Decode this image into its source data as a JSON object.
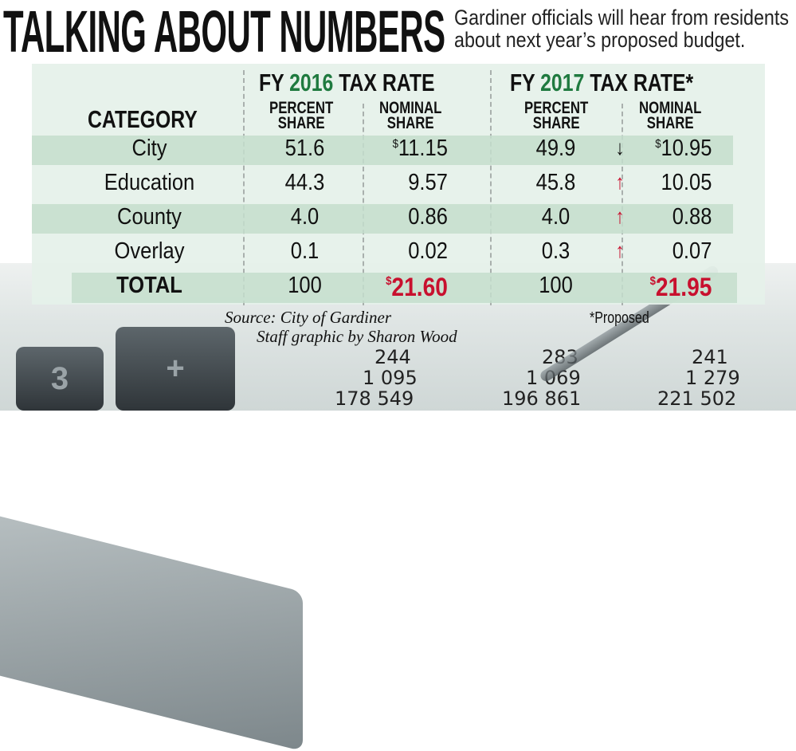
{
  "headline": "TALKING ABOUT NUMBERS",
  "subtitle_line1": "Gardiner officials will hear from residents",
  "subtitle_line2": "about next year’s proposed budget.",
  "fy2016": {
    "prefix": "FY ",
    "year": "2016",
    "suffix": " TAX RATE"
  },
  "fy2017": {
    "prefix": "FY ",
    "year": "2017",
    "suffix": " TAX RATE*"
  },
  "columns": {
    "category": "CATEGORY",
    "percent_1": "PERCENT",
    "percent_2": "SHARE",
    "nominal_1": "NOMINAL",
    "nominal_2": "SHARE"
  },
  "rows": [
    {
      "category": "City",
      "p2016": "51.6",
      "n2016": "11.15",
      "n2016_dollar": "$",
      "p2017": "49.9",
      "trend": "down",
      "trend_glyph": "↓",
      "n2017": "10.95",
      "n2017_dollar": "$"
    },
    {
      "category": "Education",
      "p2016": "44.3",
      "n2016": "9.57",
      "p2017": "45.8",
      "trend": "up",
      "trend_glyph": "↑",
      "n2017": "10.05"
    },
    {
      "category": "County",
      "p2016": "4.0",
      "n2016": "0.86",
      "p2017": "4.0",
      "trend": "up",
      "trend_glyph": "↑",
      "n2017": "0.88"
    },
    {
      "category": "Overlay",
      "p2016": "0.1",
      "n2016": "0.02",
      "p2017": "0.3",
      "trend": "up",
      "trend_glyph": "↑",
      "n2017": "0.07"
    }
  ],
  "total": {
    "category": "TOTAL",
    "p2016": "100",
    "n2016": "21.60",
    "p2017": "100",
    "n2017": "21.95",
    "dollar": "$"
  },
  "source": "Source: City of Gardiner",
  "credit": "Staff graphic by Sharon Wood",
  "footnote": "*Proposed",
  "background_numbers": [
    "244",
    "283",
    "241",
    "1 095",
    "1 069",
    "1 279",
    "178 549",
    "196 861",
    "221 502"
  ],
  "calculator_keys": [
    "3",
    "+"
  ],
  "colors": {
    "green": "#1f7a3f",
    "red": "#c8102e",
    "panel": "#e5f1e9",
    "shade": "#c4decd"
  }
}
